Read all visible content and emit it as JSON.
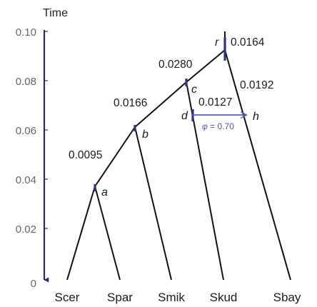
{
  "axis": {
    "title": "Time",
    "ticks": [
      "0.10",
      "0.08",
      "0.06",
      "0.04",
      "0.02",
      "0"
    ],
    "color": "#2e2a66"
  },
  "leaves": [
    "Scer",
    "Spar",
    "Smik",
    "Skud",
    "Sbay"
  ],
  "nodes": {
    "a": "a",
    "b": "b",
    "c": "c",
    "d": "d",
    "r": "r",
    "h": "h"
  },
  "branch_lengths": {
    "a_b": "0.0095",
    "b_c": "0.0166",
    "c_r": "0.0280",
    "r_root": "0.0164",
    "c_d": "0.0127",
    "r_h": "0.0192"
  },
  "introgression": {
    "phi_symbol": "φ",
    "phi_value": "= 0.70",
    "arrow_color": "#5b63b0"
  },
  "colors": {
    "tree": "#111111",
    "node_bar": "#2f3577"
  }
}
